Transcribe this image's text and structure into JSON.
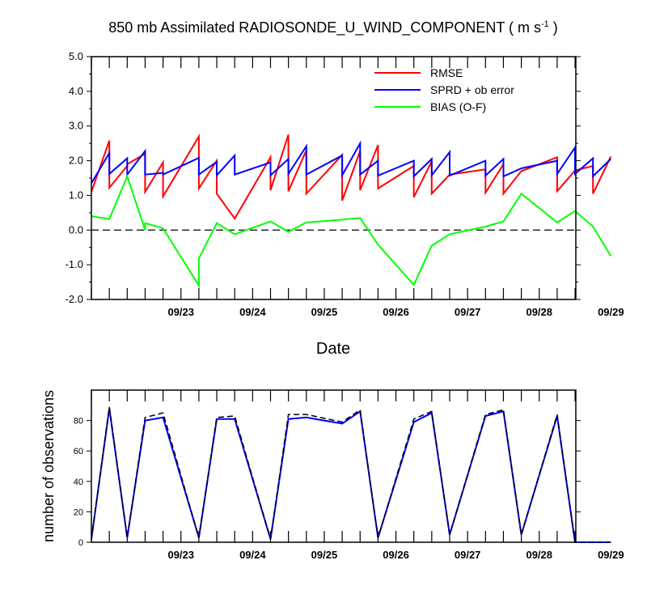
{
  "chart_data": [
    {
      "type": "line",
      "title": "850 mb Assimilated RADIOSONDE_U_WIND_COMPONENT ( m s",
      "title_superscript": "-1",
      "title_suffix": " )",
      "xlabel": "Date",
      "ylabel": "",
      "xlim": [
        0,
        6.8
      ],
      "ylim": [
        -2.0,
        5.0
      ],
      "yticks": [
        -2.0,
        -1.0,
        0.0,
        1.0,
        2.0,
        3.0,
        4.0,
        5.0
      ],
      "ytick_labels": [
        "-2.0",
        "-1.0",
        "0.0",
        "1.0",
        "2.0",
        "3.0",
        "4.0",
        "5.0"
      ],
      "xticks": [
        0.5,
        1.5,
        2.5,
        3.5,
        4.5,
        5.5,
        6.5
      ],
      "xtick_labels": [
        "09/23",
        "09/24",
        "09/25",
        "09/26",
        "09/27",
        "09/28",
        "09/29"
      ],
      "reference_line": {
        "y": 0.0,
        "style": "dashed"
      },
      "legend_position": "top-right",
      "colors": {
        "RMSE": "#ff0000",
        "SPRD + ob error": "#0000ff",
        "BIAS (O-F)": "#00ff00"
      },
      "series": [
        {
          "name": "RMSE",
          "x": [
            -0.75,
            -0.5,
            -0.5,
            -0.25,
            -0.25,
            0.0,
            0.0,
            0.25,
            0.25,
            0.75,
            0.75,
            1.0,
            1.0,
            1.25,
            1.25,
            1.75,
            1.75,
            2.0,
            2.0,
            2.25,
            2.25,
            2.75,
            2.75,
            3.0,
            3.0,
            3.25,
            3.25,
            3.75,
            3.75,
            4.0,
            4.0,
            4.25,
            4.25,
            4.75,
            4.75,
            5.0,
            5.0,
            5.25,
            5.25,
            5.75,
            5.75,
            6.0,
            6.0,
            6.25,
            6.25,
            6.5
          ],
          "y": [
            1.1,
            2.58,
            1.22,
            1.85,
            1.9,
            2.2,
            1.1,
            1.95,
            0.97,
            2.7,
            1.2,
            2.0,
            1.05,
            0.33,
            0.33,
            2.1,
            1.15,
            2.75,
            1.12,
            2.3,
            1.05,
            2.17,
            0.85,
            2.28,
            1.15,
            2.45,
            1.2,
            1.85,
            0.95,
            1.98,
            1.05,
            1.6,
            1.6,
            1.75,
            1.08,
            1.9,
            1.05,
            1.7,
            1.7,
            2.1,
            1.12,
            1.72,
            1.72,
            1.85,
            1.05,
            2.12
          ]
        },
        {
          "name": "SPRD + ob error",
          "x": [
            -0.75,
            -0.5,
            -0.5,
            -0.25,
            -0.25,
            0.0,
            0.0,
            0.25,
            0.25,
            0.75,
            0.75,
            1.0,
            1.0,
            1.25,
            1.25,
            1.75,
            1.75,
            2.0,
            2.0,
            2.25,
            2.25,
            2.75,
            2.75,
            3.0,
            3.0,
            3.25,
            3.25,
            3.75,
            3.75,
            4.0,
            4.0,
            4.25,
            4.25,
            4.75,
            4.75,
            5.0,
            5.0,
            5.25,
            5.25,
            5.75,
            5.75,
            6.0,
            6.0,
            6.25,
            6.25,
            6.5
          ],
          "y": [
            1.35,
            2.22,
            1.62,
            2.07,
            1.6,
            2.28,
            1.6,
            1.65,
            1.6,
            2.08,
            1.6,
            1.97,
            1.58,
            2.15,
            1.6,
            1.95,
            1.58,
            2.05,
            1.62,
            2.42,
            1.6,
            2.15,
            1.58,
            2.5,
            1.6,
            2.0,
            1.57,
            2.0,
            1.55,
            2.05,
            1.58,
            2.25,
            1.57,
            2.0,
            1.57,
            2.05,
            1.55,
            1.78,
            1.78,
            2.0,
            1.62,
            2.38,
            1.62,
            2.07,
            1.55,
            2.05
          ]
        },
        {
          "name": "BIAS (O-F)",
          "x": [
            -0.75,
            -0.5,
            -0.5,
            -0.25,
            -0.25,
            0.0,
            0.0,
            0.25,
            0.25,
            0.75,
            0.75,
            1.0,
            1.0,
            1.25,
            1.25,
            1.75,
            1.75,
            2.0,
            2.0,
            2.25,
            2.25,
            2.75,
            2.75,
            3.0,
            3.0,
            3.25,
            3.25,
            3.75,
            3.75,
            4.0,
            4.0,
            4.25,
            4.25,
            4.75,
            4.75,
            5.0,
            5.0,
            5.25,
            5.25,
            5.75,
            5.75,
            6.0,
            6.0,
            6.25,
            6.25,
            6.5
          ],
          "y": [
            0.4,
            0.32,
            0.32,
            1.55,
            1.55,
            0.0,
            0.2,
            0.05,
            0.05,
            -1.6,
            -0.82,
            0.2,
            0.2,
            -0.12,
            -0.12,
            0.25,
            0.25,
            -0.05,
            -0.05,
            0.22,
            0.22,
            0.3,
            0.3,
            0.35,
            0.35,
            -0.42,
            -0.42,
            -1.58,
            -1.58,
            -0.45,
            -0.45,
            -0.12,
            -0.12,
            0.1,
            0.1,
            0.25,
            0.25,
            1.05,
            1.05,
            0.22,
            0.22,
            0.55,
            0.55,
            0.1,
            0.1,
            -0.75
          ]
        }
      ]
    },
    {
      "type": "line",
      "title": "",
      "xlabel": "",
      "ylabel": "number of observations",
      "xlim": [
        0,
        6.8
      ],
      "ylim": [
        0,
        100
      ],
      "yticks": [
        0,
        20,
        40,
        60,
        80
      ],
      "ytick_labels": [
        "0",
        "20",
        "40",
        "60",
        "80"
      ],
      "xticks": [
        0.5,
        1.5,
        2.5,
        3.5,
        4.5,
        5.5,
        6.5
      ],
      "xtick_labels": [
        "09/23",
        "09/24",
        "09/25",
        "09/26",
        "09/27",
        "09/28",
        "09/29"
      ],
      "series": [
        {
          "style": "solid",
          "color": "#0000ff",
          "x": [
            -0.75,
            -0.5,
            -0.25,
            0.0,
            0.25,
            0.75,
            1.0,
            1.25,
            1.75,
            2.0,
            2.25,
            2.75,
            3.0,
            3.25,
            3.75,
            4.0,
            4.25,
            4.75,
            5.0,
            5.25,
            5.75,
            6.0,
            6.25,
            6.5
          ],
          "y": [
            2,
            88,
            3,
            80,
            82,
            3,
            81,
            81,
            2,
            81,
            82,
            78,
            86,
            3,
            79,
            85,
            5,
            83,
            86,
            5,
            83,
            0,
            0,
            0
          ]
        },
        {
          "style": "dashed",
          "color": "#000000",
          "x": [
            -0.75,
            -0.5,
            -0.25,
            0.0,
            0.25,
            0.75,
            1.0,
            1.25,
            1.75,
            2.0,
            2.25,
            2.75,
            3.0,
            3.25,
            3.75,
            4.0,
            4.25,
            4.75,
            5.0,
            5.25,
            5.75,
            6.0,
            6.25,
            6.5
          ],
          "y": [
            2,
            89,
            3,
            82,
            85,
            3,
            82,
            83,
            2,
            84,
            84,
            79,
            87,
            3,
            81,
            86,
            5,
            84,
            87,
            5,
            84,
            0,
            0,
            0
          ]
        }
      ]
    }
  ]
}
